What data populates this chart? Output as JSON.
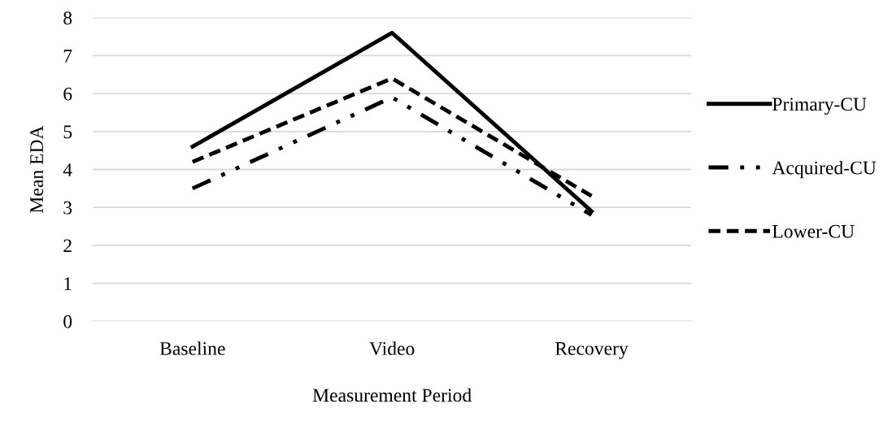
{
  "chart_data": {
    "type": "line",
    "xlabel": "Measurement Period",
    "ylabel": "Mean EDA",
    "categories": [
      "Baseline",
      "Video",
      "Recovery"
    ],
    "series": [
      {
        "name": "Primary-CU",
        "color": "#000000",
        "line_style": "solid",
        "values": [
          4.6,
          7.6,
          2.9
        ]
      },
      {
        "name": "Acquired-CU",
        "color": "#000000",
        "line_style": "dashdot",
        "values": [
          3.5,
          5.9,
          2.8
        ]
      },
      {
        "name": "Lower-CU",
        "color": "#000000",
        "line_style": "dashed",
        "values": [
          4.2,
          6.4,
          3.3
        ]
      }
    ],
    "ylim": [
      0,
      8
    ],
    "yticks": [
      0,
      1,
      2,
      3,
      4,
      5,
      6,
      7,
      8
    ],
    "grid": "y",
    "legend": "right"
  }
}
